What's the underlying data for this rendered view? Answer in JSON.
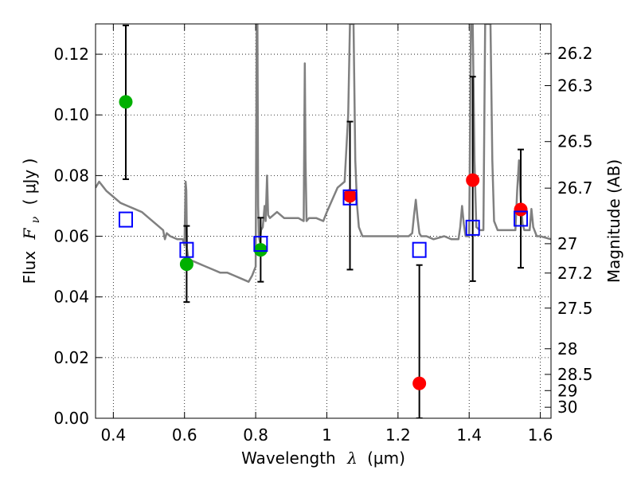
{
  "chart_data": {
    "type": "scatter",
    "x_axis": {
      "label_prefix": "Wavelength",
      "label_symbol": "λ",
      "label_unit": "(μm)",
      "range": [
        0.35,
        1.63
      ],
      "ticks": [
        {
          "value": 0.4,
          "label": "0.4"
        },
        {
          "value": 0.6,
          "label": "0.6"
        },
        {
          "value": 0.8,
          "label": "0.8"
        },
        {
          "value": 1.0,
          "label": "1"
        },
        {
          "value": 1.2,
          "label": "1.2"
        },
        {
          "value": 1.4,
          "label": "1.4"
        },
        {
          "value": 1.6,
          "label": "1.6"
        }
      ]
    },
    "y_axis": {
      "label_prefix": "Flux",
      "label_symbol": "F",
      "label_subscript": "ν",
      "label_unit": "( μJy )",
      "range": [
        0.0,
        0.13
      ],
      "ticks": [
        {
          "value": 0.0,
          "label": "0.00"
        },
        {
          "value": 0.02,
          "label": "0.02"
        },
        {
          "value": 0.04,
          "label": "0.04"
        },
        {
          "value": 0.06,
          "label": "0.06"
        },
        {
          "value": 0.08,
          "label": "0.08"
        },
        {
          "value": 0.1,
          "label": "0.10"
        },
        {
          "value": 0.12,
          "label": "0.12"
        }
      ]
    },
    "y2_axis": {
      "label": "Magnitude (AB)",
      "ticks": [
        {
          "value": 26.2,
          "label": "26.2"
        },
        {
          "value": 26.3,
          "label": "26.3"
        },
        {
          "value": 26.5,
          "label": "26.5"
        },
        {
          "value": 26.7,
          "label": "26.7"
        },
        {
          "value": 27.0,
          "label": "27"
        },
        {
          "value": 27.2,
          "label": "27.2"
        },
        {
          "value": 27.5,
          "label": "27.5"
        },
        {
          "value": 28.0,
          "label": "28"
        },
        {
          "value": 28.5,
          "label": "28.5"
        },
        {
          "value": 29.0,
          "label": "29"
        },
        {
          "value": 30.0,
          "label": "30"
        }
      ]
    },
    "grid": true,
    "colors": {
      "model": "#808080",
      "optical": "#00b000",
      "nir": "#ff0000",
      "model_flux": "#0000ff",
      "errorbar": "#000000"
    },
    "series": [
      {
        "marker": "circle-green",
        "x": [
          0.435,
          0.606,
          0.814
        ],
        "y": [
          0.1043,
          0.0508,
          0.0555
        ],
        "yerr_low": [
          0.0788,
          0.0383,
          0.045
        ],
        "yerr_high": [
          0.1295,
          0.0634,
          0.0661
        ]
      },
      {
        "marker": "circle-red",
        "x": [
          1.065,
          1.26,
          1.41,
          1.545
        ],
        "y": [
          0.0733,
          0.0115,
          0.0785,
          0.0688
        ],
        "yerr_low": [
          0.049,
          0.0,
          0.0452,
          0.0496
        ],
        "yerr_high": [
          0.0978,
          0.0505,
          0.1126,
          0.0886
        ]
      },
      {
        "marker": "square-blue",
        "x": [
          0.435,
          0.606,
          0.814,
          1.065,
          1.26,
          1.41,
          1.545
        ],
        "y": [
          0.0655,
          0.0555,
          0.0575,
          0.0728,
          0.0555,
          0.0628,
          0.0658
        ]
      },
      {
        "line": "model-spectrum",
        "x": [
          0.35,
          0.36,
          0.38,
          0.4,
          0.42,
          0.44,
          0.46,
          0.48,
          0.5,
          0.52,
          0.54,
          0.545,
          0.55,
          0.56,
          0.58,
          0.595,
          0.6,
          0.603,
          0.605,
          0.607,
          0.61,
          0.62,
          0.64,
          0.66,
          0.68,
          0.7,
          0.72,
          0.74,
          0.76,
          0.78,
          0.79,
          0.8,
          0.803,
          0.805,
          0.807,
          0.809,
          0.812,
          0.815,
          0.82,
          0.825,
          0.828,
          0.832,
          0.835,
          0.84,
          0.86,
          0.88,
          0.9,
          0.92,
          0.935,
          0.938,
          0.94,
          0.943,
          0.95,
          0.97,
          0.99,
          1.0,
          1.03,
          1.05,
          1.06,
          1.065,
          1.07,
          1.075,
          1.08,
          1.085,
          1.09,
          1.1,
          1.15,
          1.2,
          1.22,
          1.23,
          1.24,
          1.245,
          1.25,
          1.255,
          1.26,
          1.265,
          1.27,
          1.275,
          1.28,
          1.3,
          1.33,
          1.35,
          1.37,
          1.375,
          1.38,
          1.385,
          1.39,
          1.395,
          1.4,
          1.405,
          1.41,
          1.415,
          1.42,
          1.43,
          1.44,
          1.445,
          1.45,
          1.455,
          1.46,
          1.465,
          1.47,
          1.48,
          1.5,
          1.52,
          1.53,
          1.535,
          1.54,
          1.545,
          1.55,
          1.555,
          1.56,
          1.57,
          1.575,
          1.58,
          1.59,
          1.6,
          1.63
        ],
        "y": [
          0.076,
          0.078,
          0.075,
          0.073,
          0.071,
          0.07,
          0.069,
          0.068,
          0.066,
          0.064,
          0.062,
          0.059,
          0.061,
          0.06,
          0.059,
          0.059,
          0.057,
          0.078,
          0.075,
          0.056,
          0.053,
          0.052,
          0.051,
          0.05,
          0.049,
          0.048,
          0.048,
          0.047,
          0.046,
          0.045,
          0.047,
          0.05,
          0.13,
          0.13,
          0.07,
          0.06,
          0.058,
          0.062,
          0.063,
          0.07,
          0.065,
          0.08,
          0.067,
          0.066,
          0.068,
          0.066,
          0.066,
          0.066,
          0.065,
          0.117,
          0.085,
          0.065,
          0.066,
          0.066,
          0.065,
          0.068,
          0.076,
          0.078,
          0.1,
          0.13,
          0.13,
          0.13,
          0.085,
          0.07,
          0.063,
          0.06,
          0.06,
          0.06,
          0.06,
          0.06,
          0.061,
          0.067,
          0.072,
          0.066,
          0.061,
          0.06,
          0.06,
          0.06,
          0.06,
          0.059,
          0.06,
          0.059,
          0.059,
          0.063,
          0.07,
          0.064,
          0.06,
          0.06,
          0.06,
          0.13,
          0.13,
          0.085,
          0.063,
          0.062,
          0.062,
          0.13,
          0.13,
          0.13,
          0.13,
          0.085,
          0.065,
          0.062,
          0.062,
          0.062,
          0.062,
          0.075,
          0.085,
          0.072,
          0.064,
          0.062,
          0.062,
          0.062,
          0.069,
          0.063,
          0.06,
          0.06,
          0.059
        ]
      }
    ]
  }
}
